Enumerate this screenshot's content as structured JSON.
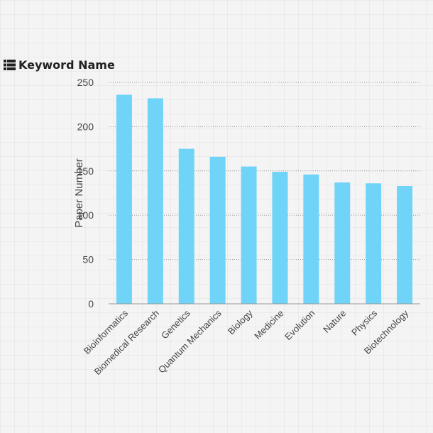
{
  "panel": {
    "title": "Keyword Name",
    "icon": "list-icon"
  },
  "chart_data": {
    "type": "bar",
    "title": "",
    "xlabel": "",
    "ylabel": "Paper Number",
    "ylim": [
      0,
      250
    ],
    "yticks": [
      0,
      50,
      100,
      150,
      200,
      250
    ],
    "grid": true,
    "categories": [
      "Bioinformatics",
      "Biomedical Research",
      "Genetics",
      "Quantum Mechanics",
      "Biology",
      "Medicine",
      "Evolution",
      "Nature",
      "Physics",
      "Biotechnology"
    ],
    "values": [
      236,
      232,
      175,
      166,
      155,
      149,
      146,
      137,
      136,
      133
    ],
    "bar_color": "#70d4f8"
  }
}
